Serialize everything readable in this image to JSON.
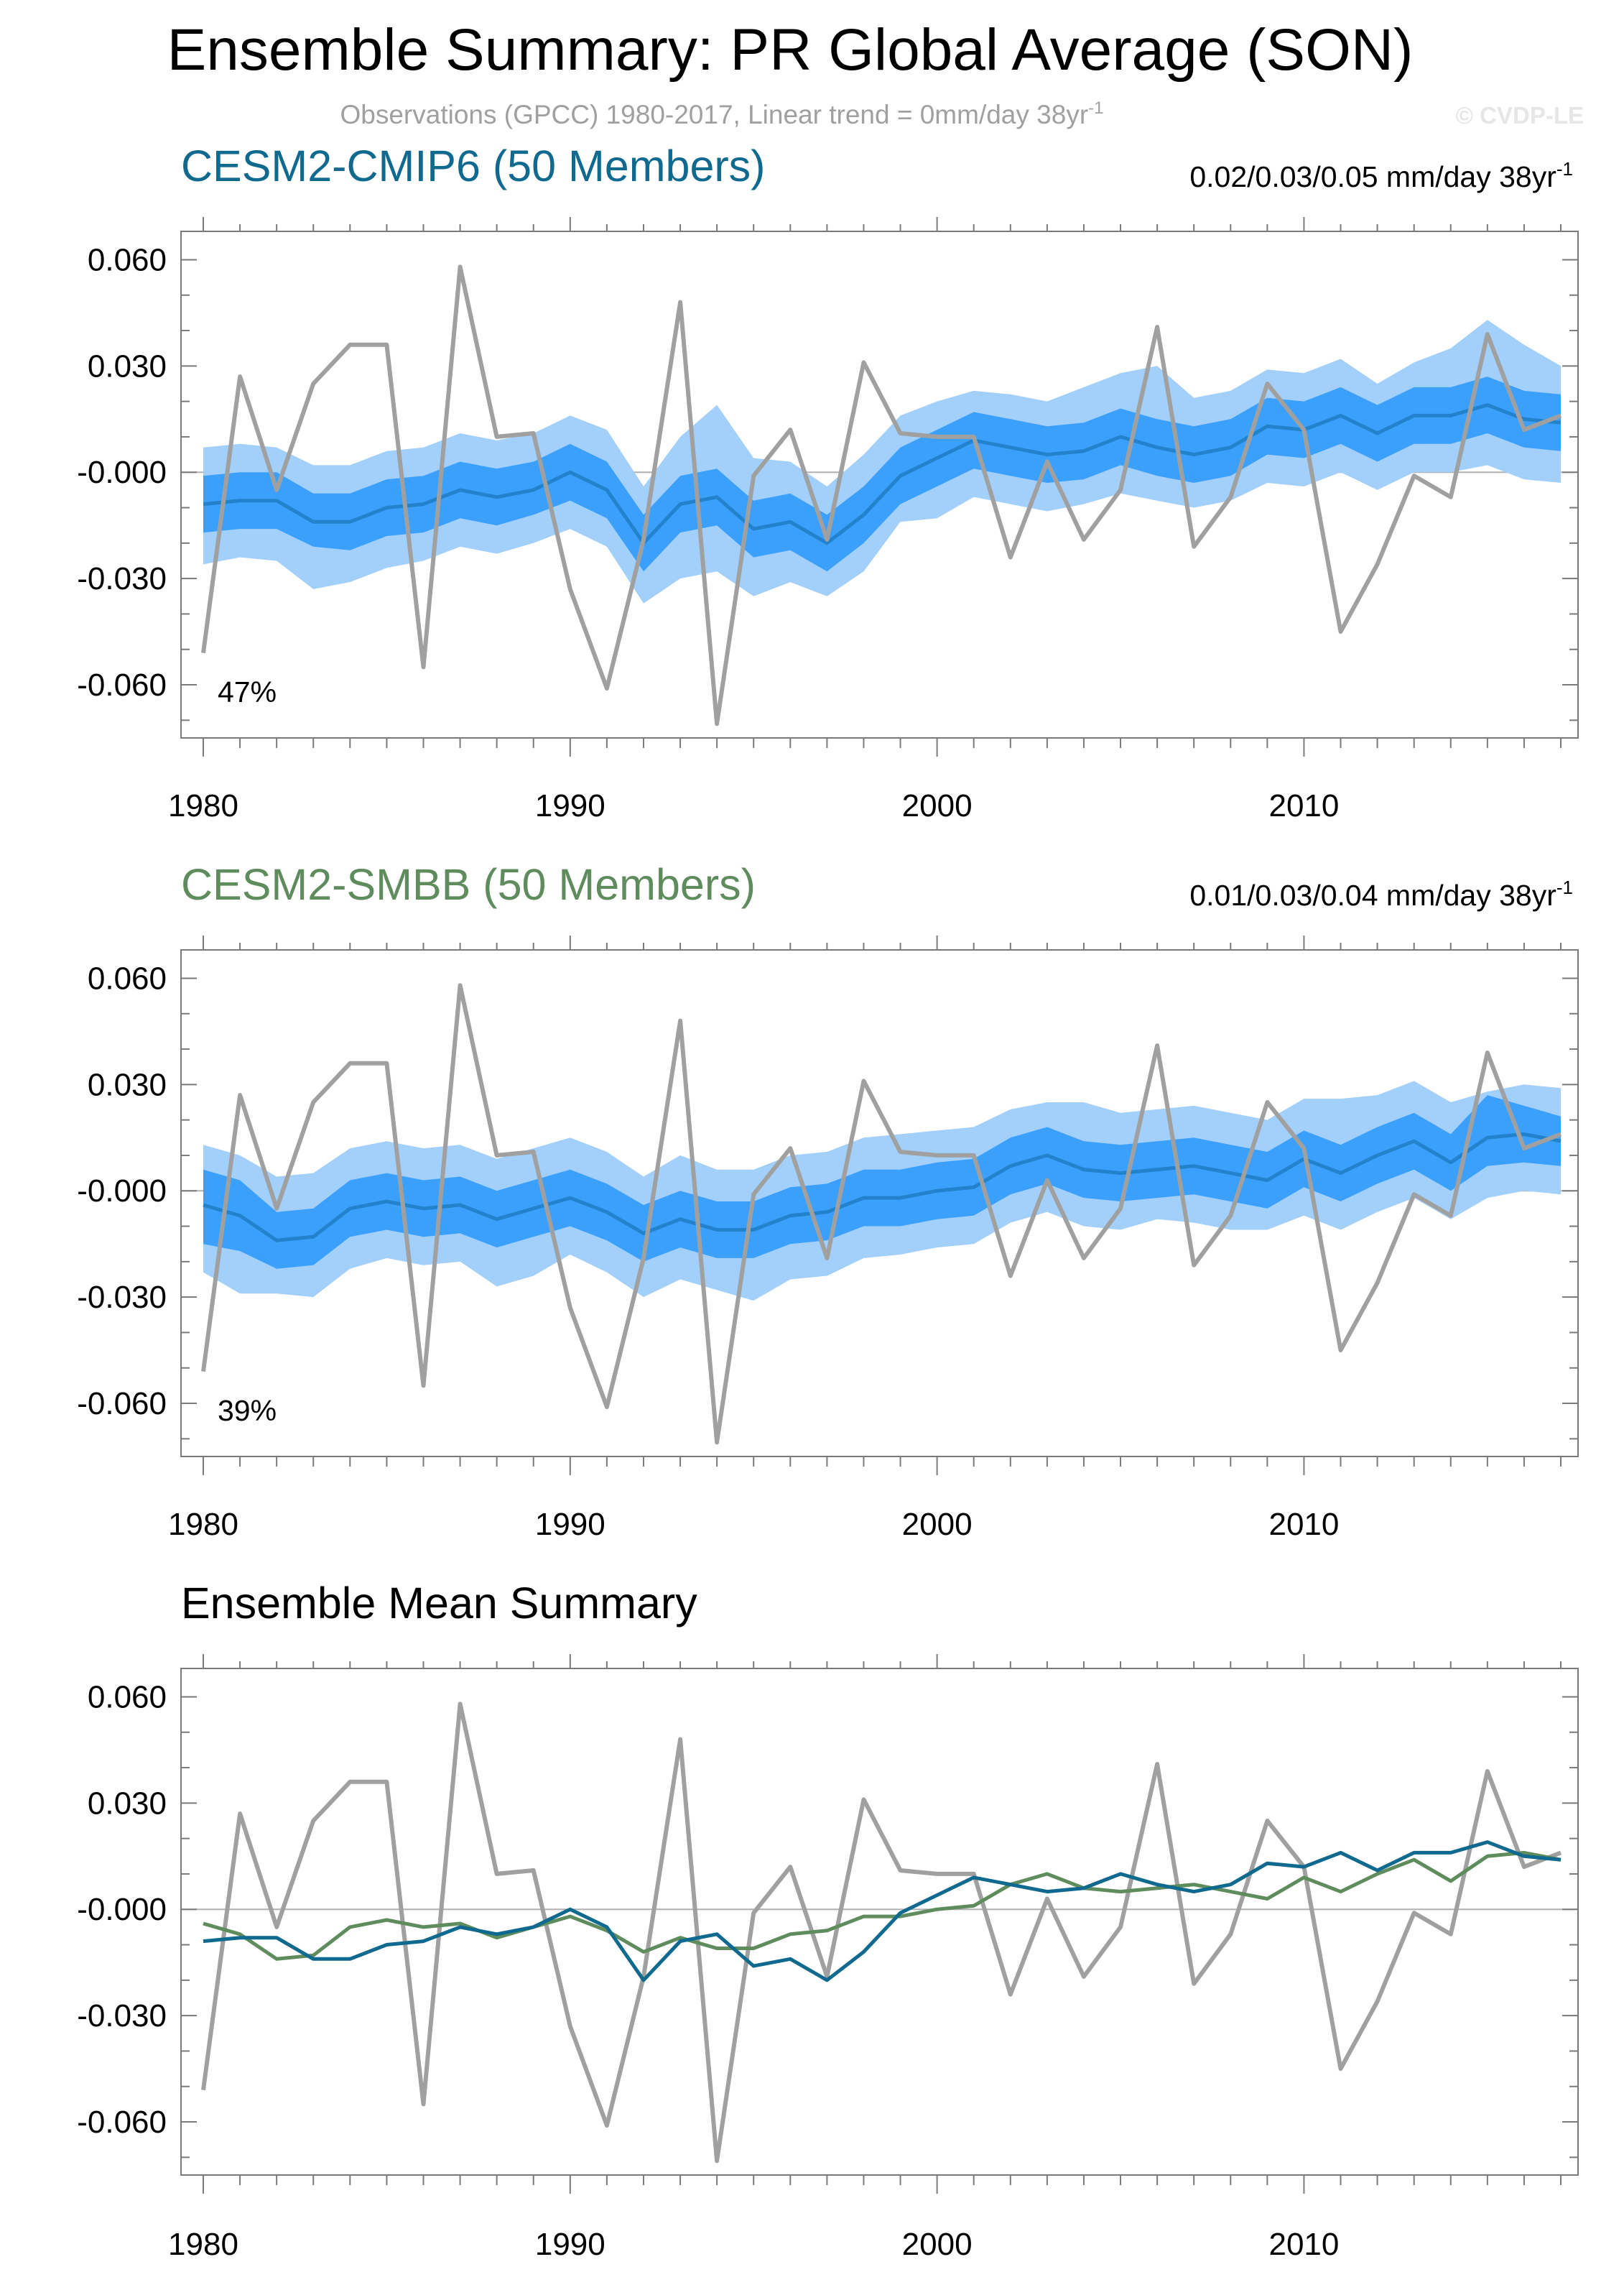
{
  "title": "Ensemble Summary: PR Global Average (SON)",
  "subtitle": "Observations (GPCC) 1980-2017, Linear trend = 0mm/day 38yr",
  "subtitle_sup": "-1",
  "watermark": "© CVDP-LE",
  "colors": {
    "obs": "#a0a0a0",
    "outer_band": "#a3cffb",
    "inner_band": "#3ba0fb",
    "panel1_mean": "#2283cc",
    "panel2_mean": "#2283cc",
    "cesm2_cmip6": "#10698e",
    "cesm2_smbb": "#5f8c5d"
  },
  "chart_data": [
    {
      "type": "line",
      "title": "CESM2-CMIP6 (50 Members)",
      "trend_label": "0.02/0.03/0.05 mm/day 38yr",
      "trend_sup": "-1",
      "percent_label": "47%",
      "xlim": [
        1980,
        2017
      ],
      "ylim": [
        -0.075,
        0.068
      ],
      "yticks": [
        "0.060",
        "0.030",
        "-0.000",
        "-0.030",
        "-0.060"
      ],
      "ytick_values": [
        0.06,
        0.03,
        0.0,
        -0.03,
        -0.06
      ],
      "xticks": [
        "1980",
        "1990",
        "2000",
        "2010"
      ],
      "xtick_values": [
        1980,
        1990,
        2000,
        2010
      ],
      "x": [
        1980,
        1981,
        1982,
        1983,
        1984,
        1985,
        1986,
        1987,
        1988,
        1989,
        1990,
        1991,
        1992,
        1993,
        1994,
        1995,
        1996,
        1997,
        1998,
        1999,
        2000,
        2001,
        2002,
        2003,
        2004,
        2005,
        2006,
        2007,
        2008,
        2009,
        2010,
        2011,
        2012,
        2013,
        2014,
        2015,
        2016,
        2017
      ],
      "series": [
        {
          "name": "Observations (GPCC)",
          "role": "obs",
          "values": [
            -0.051,
            0.027,
            -0.005,
            0.025,
            0.036,
            0.036,
            -0.055,
            0.058,
            0.01,
            0.011,
            -0.033,
            -0.061,
            -0.019,
            0.048,
            -0.071,
            -0.001,
            0.012,
            -0.019,
            0.031,
            0.011,
            0.01,
            0.01,
            -0.024,
            0.003,
            -0.019,
            -0.005,
            0.041,
            -0.021,
            -0.007,
            0.025,
            0.012,
            -0.045,
            -0.026,
            -0.001,
            -0.007,
            0.039,
            0.012,
            0.016
          ]
        },
        {
          "name": "Ensemble mean",
          "role": "mean",
          "values": [
            -0.009,
            -0.008,
            -0.008,
            -0.014,
            -0.014,
            -0.01,
            -0.009,
            -0.005,
            -0.007,
            -0.005,
            0.0,
            -0.005,
            -0.02,
            -0.009,
            -0.007,
            -0.016,
            -0.014,
            -0.02,
            -0.012,
            -0.001,
            0.004,
            0.009,
            0.007,
            0.005,
            0.006,
            0.01,
            0.007,
            0.005,
            0.007,
            0.013,
            0.012,
            0.016,
            0.011,
            0.016,
            0.016,
            0.019,
            0.015,
            0.014
          ]
        },
        {
          "name": "Inner band low",
          "role": "inner_low",
          "values": [
            -0.017,
            -0.016,
            -0.016,
            -0.021,
            -0.022,
            -0.018,
            -0.017,
            -0.013,
            -0.015,
            -0.012,
            -0.008,
            -0.013,
            -0.028,
            -0.017,
            -0.015,
            -0.024,
            -0.022,
            -0.028,
            -0.02,
            -0.009,
            -0.004,
            0.001,
            -0.001,
            -0.003,
            -0.002,
            0.002,
            -0.001,
            -0.003,
            -0.001,
            0.005,
            0.004,
            0.008,
            0.003,
            0.008,
            0.008,
            0.011,
            0.007,
            0.006
          ]
        },
        {
          "name": "Inner band high",
          "role": "inner_high",
          "values": [
            -0.001,
            0.0,
            0.0,
            -0.006,
            -0.006,
            -0.002,
            -0.001,
            0.003,
            0.001,
            0.003,
            0.008,
            0.003,
            -0.012,
            -0.001,
            0.001,
            -0.008,
            -0.006,
            -0.012,
            -0.004,
            0.007,
            0.012,
            0.017,
            0.015,
            0.013,
            0.014,
            0.018,
            0.015,
            0.013,
            0.015,
            0.021,
            0.02,
            0.024,
            0.019,
            0.024,
            0.024,
            0.027,
            0.023,
            0.022
          ]
        },
        {
          "name": "Outer band low",
          "role": "outer_low",
          "values": [
            -0.026,
            -0.024,
            -0.025,
            -0.033,
            -0.031,
            -0.027,
            -0.025,
            -0.021,
            -0.023,
            -0.02,
            -0.016,
            -0.021,
            -0.037,
            -0.03,
            -0.028,
            -0.035,
            -0.031,
            -0.035,
            -0.028,
            -0.014,
            -0.013,
            -0.007,
            -0.009,
            -0.011,
            -0.009,
            -0.006,
            -0.008,
            -0.01,
            -0.008,
            -0.003,
            -0.004,
            0.0,
            -0.005,
            0.0,
            0.0,
            0.002,
            -0.002,
            -0.003
          ]
        },
        {
          "name": "Outer band high",
          "role": "outer_high",
          "values": [
            0.007,
            0.008,
            0.007,
            0.002,
            0.002,
            0.006,
            0.007,
            0.011,
            0.009,
            0.011,
            0.016,
            0.012,
            -0.004,
            0.01,
            0.019,
            0.004,
            0.003,
            -0.004,
            0.005,
            0.016,
            0.02,
            0.023,
            0.022,
            0.02,
            0.024,
            0.028,
            0.03,
            0.021,
            0.023,
            0.029,
            0.028,
            0.032,
            0.025,
            0.031,
            0.035,
            0.043,
            0.036,
            0.03
          ]
        }
      ]
    },
    {
      "type": "line",
      "title": "CESM2-SMBB (50 Members)",
      "trend_label": "0.01/0.03/0.04 mm/day 38yr",
      "trend_sup": "-1",
      "percent_label": "39%",
      "xlim": [
        1980,
        2017
      ],
      "ylim": [
        -0.075,
        0.068
      ],
      "yticks": [
        "0.060",
        "0.030",
        "-0.000",
        "-0.030",
        "-0.060"
      ],
      "ytick_values": [
        0.06,
        0.03,
        0.0,
        -0.03,
        -0.06
      ],
      "xticks": [
        "1980",
        "1990",
        "2000",
        "2010"
      ],
      "xtick_values": [
        1980,
        1990,
        2000,
        2010
      ],
      "x": [
        1980,
        1981,
        1982,
        1983,
        1984,
        1985,
        1986,
        1987,
        1988,
        1989,
        1990,
        1991,
        1992,
        1993,
        1994,
        1995,
        1996,
        1997,
        1998,
        1999,
        2000,
        2001,
        2002,
        2003,
        2004,
        2005,
        2006,
        2007,
        2008,
        2009,
        2010,
        2011,
        2012,
        2013,
        2014,
        2015,
        2016,
        2017
      ],
      "series": [
        {
          "name": "Observations (GPCC)",
          "role": "obs",
          "values": [
            -0.051,
            0.027,
            -0.005,
            0.025,
            0.036,
            0.036,
            -0.055,
            0.058,
            0.01,
            0.011,
            -0.033,
            -0.061,
            -0.019,
            0.048,
            -0.071,
            -0.001,
            0.012,
            -0.019,
            0.031,
            0.011,
            0.01,
            0.01,
            -0.024,
            0.003,
            -0.019,
            -0.005,
            0.041,
            -0.021,
            -0.007,
            0.025,
            0.012,
            -0.045,
            -0.026,
            -0.001,
            -0.007,
            0.039,
            0.012,
            0.016
          ]
        },
        {
          "name": "Ensemble mean",
          "role": "mean",
          "values": [
            -0.004,
            -0.007,
            -0.014,
            -0.013,
            -0.005,
            -0.003,
            -0.005,
            -0.004,
            -0.008,
            -0.005,
            -0.002,
            -0.006,
            -0.012,
            -0.008,
            -0.011,
            -0.011,
            -0.007,
            -0.006,
            -0.002,
            -0.002,
            0.0,
            0.001,
            0.007,
            0.01,
            0.006,
            0.005,
            0.006,
            0.007,
            0.005,
            0.003,
            0.009,
            0.005,
            0.01,
            0.014,
            0.008,
            0.015,
            0.016,
            0.014
          ]
        },
        {
          "name": "Inner band low",
          "role": "inner_low",
          "values": [
            -0.015,
            -0.017,
            -0.022,
            -0.021,
            -0.013,
            -0.011,
            -0.013,
            -0.012,
            -0.016,
            -0.013,
            -0.01,
            -0.014,
            -0.02,
            -0.016,
            -0.019,
            -0.019,
            -0.015,
            -0.014,
            -0.01,
            -0.01,
            -0.008,
            -0.007,
            -0.001,
            0.002,
            -0.002,
            -0.003,
            -0.002,
            -0.001,
            -0.003,
            -0.005,
            0.001,
            -0.003,
            0.002,
            0.006,
            0.0,
            0.007,
            0.008,
            0.007
          ]
        },
        {
          "name": "Inner band high",
          "role": "inner_high",
          "values": [
            0.006,
            0.003,
            -0.006,
            -0.005,
            0.003,
            0.005,
            0.003,
            0.004,
            0.0,
            0.003,
            0.006,
            0.002,
            -0.004,
            0.0,
            -0.003,
            -0.003,
            0.001,
            0.002,
            0.006,
            0.006,
            0.008,
            0.009,
            0.015,
            0.018,
            0.014,
            0.013,
            0.014,
            0.015,
            0.013,
            0.011,
            0.017,
            0.013,
            0.018,
            0.022,
            0.016,
            0.027,
            0.024,
            0.021
          ]
        },
        {
          "name": "Outer band low",
          "role": "outer_low",
          "values": [
            -0.023,
            -0.029,
            -0.029,
            -0.03,
            -0.022,
            -0.019,
            -0.021,
            -0.02,
            -0.027,
            -0.024,
            -0.018,
            -0.023,
            -0.03,
            -0.025,
            -0.028,
            -0.031,
            -0.025,
            -0.024,
            -0.019,
            -0.018,
            -0.016,
            -0.015,
            -0.009,
            -0.006,
            -0.01,
            -0.011,
            -0.008,
            -0.009,
            -0.011,
            -0.011,
            -0.007,
            -0.011,
            -0.006,
            -0.002,
            -0.008,
            -0.002,
            0.0,
            -0.001
          ]
        },
        {
          "name": "Outer band high",
          "role": "outer_high",
          "values": [
            0.013,
            0.01,
            0.004,
            0.005,
            0.012,
            0.014,
            0.012,
            0.013,
            0.009,
            0.012,
            0.015,
            0.011,
            0.004,
            0.01,
            0.006,
            0.006,
            0.01,
            0.011,
            0.015,
            0.016,
            0.017,
            0.018,
            0.023,
            0.025,
            0.025,
            0.022,
            0.023,
            0.024,
            0.022,
            0.02,
            0.026,
            0.026,
            0.027,
            0.031,
            0.025,
            0.028,
            0.03,
            0.029
          ]
        }
      ]
    },
    {
      "type": "line",
      "title": "Ensemble Mean Summary",
      "xlim": [
        1980,
        2017
      ],
      "ylim": [
        -0.075,
        0.068
      ],
      "yticks": [
        "0.060",
        "0.030",
        "-0.000",
        "-0.030",
        "-0.060"
      ],
      "ytick_values": [
        0.06,
        0.03,
        0.0,
        -0.03,
        -0.06
      ],
      "xticks": [
        "1980",
        "1990",
        "2000",
        "2010"
      ],
      "xtick_values": [
        1980,
        1990,
        2000,
        2010
      ],
      "x": [
        1980,
        1981,
        1982,
        1983,
        1984,
        1985,
        1986,
        1987,
        1988,
        1989,
        1990,
        1991,
        1992,
        1993,
        1994,
        1995,
        1996,
        1997,
        1998,
        1999,
        2000,
        2001,
        2002,
        2003,
        2004,
        2005,
        2006,
        2007,
        2008,
        2009,
        2010,
        2011,
        2012,
        2013,
        2014,
        2015,
        2016,
        2017
      ],
      "series": [
        {
          "name": "Observations (GPCC)",
          "role": "obs",
          "values": [
            -0.051,
            0.027,
            -0.005,
            0.025,
            0.036,
            0.036,
            -0.055,
            0.058,
            0.01,
            0.011,
            -0.033,
            -0.061,
            -0.019,
            0.048,
            -0.071,
            -0.001,
            0.012,
            -0.019,
            0.031,
            0.011,
            0.01,
            0.01,
            -0.024,
            0.003,
            -0.019,
            -0.005,
            0.041,
            -0.021,
            -0.007,
            0.025,
            0.012,
            -0.045,
            -0.026,
            -0.001,
            -0.007,
            0.039,
            0.012,
            0.016
          ]
        },
        {
          "name": "CESM2-CMIP6",
          "role": "cmip6",
          "values": [
            -0.009,
            -0.008,
            -0.008,
            -0.014,
            -0.014,
            -0.01,
            -0.009,
            -0.005,
            -0.007,
            -0.005,
            0.0,
            -0.005,
            -0.02,
            -0.009,
            -0.007,
            -0.016,
            -0.014,
            -0.02,
            -0.012,
            -0.001,
            0.004,
            0.009,
            0.007,
            0.005,
            0.006,
            0.01,
            0.007,
            0.005,
            0.007,
            0.013,
            0.012,
            0.016,
            0.011,
            0.016,
            0.016,
            0.019,
            0.015,
            0.014
          ]
        },
        {
          "name": "CESM2-SMBB",
          "role": "smbb",
          "values": [
            -0.004,
            -0.007,
            -0.014,
            -0.013,
            -0.005,
            -0.003,
            -0.005,
            -0.004,
            -0.008,
            -0.005,
            -0.002,
            -0.006,
            -0.012,
            -0.008,
            -0.011,
            -0.011,
            -0.007,
            -0.006,
            -0.002,
            -0.002,
            0.0,
            0.001,
            0.007,
            0.01,
            0.006,
            0.005,
            0.006,
            0.007,
            0.005,
            0.003,
            0.009,
            0.005,
            0.01,
            0.014,
            0.008,
            0.015,
            0.016,
            0.014
          ]
        }
      ]
    }
  ]
}
